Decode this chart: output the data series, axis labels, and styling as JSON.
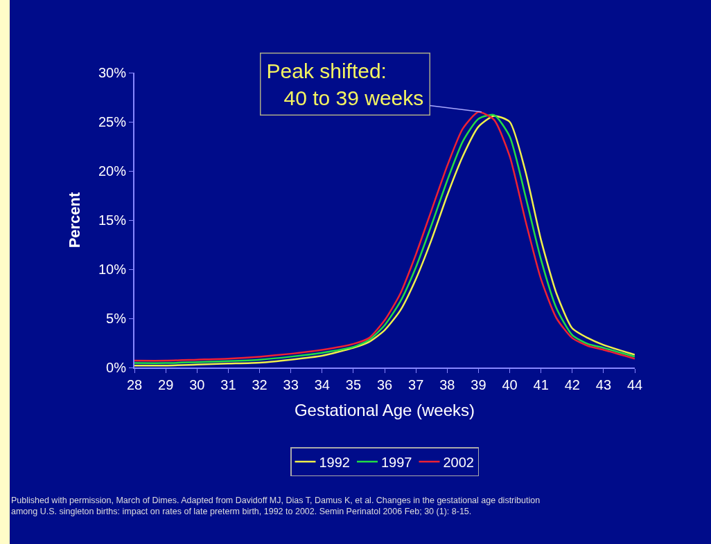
{
  "chart_data": {
    "type": "line",
    "xlabel": "Gestational Age (weeks)",
    "ylabel": "Percent",
    "x": [
      28,
      29,
      30,
      31,
      32,
      33,
      34,
      35,
      35.5,
      36,
      36.5,
      37,
      37.5,
      38,
      38.5,
      39,
      39.5,
      40,
      40.5,
      41,
      41.5,
      42,
      42.5,
      43,
      44
    ],
    "series": [
      {
        "name": "1992",
        "color": "#f0f04a",
        "values": [
          0.2,
          0.2,
          0.3,
          0.4,
          0.5,
          0.8,
          1.2,
          2.0,
          2.6,
          3.8,
          5.8,
          9.0,
          13,
          17.5,
          21.5,
          24.5,
          25.6,
          25,
          20,
          13,
          7.5,
          4,
          3,
          2.3,
          1.3
        ]
      },
      {
        "name": "1997",
        "color": "#22dd44",
        "values": [
          0.45,
          0.45,
          0.55,
          0.65,
          0.8,
          1.1,
          1.5,
          2.1,
          2.8,
          4.3,
          6.7,
          10.2,
          14.5,
          19,
          23,
          25.3,
          25.7,
          23.5,
          17.5,
          11,
          6,
          3.3,
          2.4,
          2.0,
          1.1
        ]
      },
      {
        "name": "2002",
        "color": "#ee2233",
        "values": [
          0.7,
          0.7,
          0.8,
          0.9,
          1.1,
          1.4,
          1.8,
          2.4,
          3.0,
          4.8,
          7.5,
          11.5,
          16,
          20.5,
          24.3,
          26,
          25.2,
          21.5,
          15,
          9,
          5,
          3,
          2.2,
          1.8,
          0.9
        ]
      }
    ],
    "xlim": [
      28,
      44
    ],
    "xticks": [
      28,
      29,
      30,
      31,
      32,
      33,
      34,
      35,
      36,
      37,
      38,
      39,
      40,
      41,
      42,
      43,
      44
    ],
    "ylim": [
      0,
      30
    ],
    "yticks": [
      {
        "value": 0,
        "label": "0%"
      },
      {
        "value": 5,
        "label": "5%"
      },
      {
        "value": 10,
        "label": "10%"
      },
      {
        "value": 15,
        "label": "15%"
      },
      {
        "value": 20,
        "label": "20%"
      },
      {
        "value": 25,
        "label": "25%"
      },
      {
        "value": 30,
        "label": "30%"
      }
    ],
    "grid": false,
    "legend": "bottom",
    "marker": "none",
    "line_style": "solid",
    "annotations": [
      {
        "text": "Peak shifted:\n   40 to 39 weeks",
        "x": 39.1,
        "y": 26
      },
      "Published with permission, March of Dimes. Adapted from Davidoff MJ, Dias T, Damus K, et al. Changes in the gestational age distribution\namong U.S. singleton births: impact on rates of late preterm birth, 1992 to 2002. Semin Perinatol 2006 Feb; 30 (1): 8-15."
    ]
  }
}
